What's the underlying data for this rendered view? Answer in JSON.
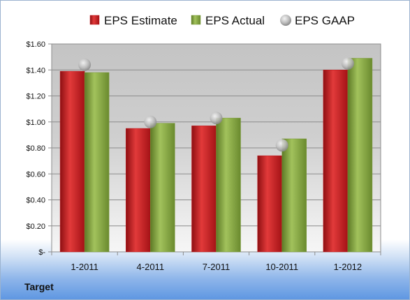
{
  "company": "Target",
  "chart_data": {
    "type": "bar",
    "categories": [
      "1-2011",
      "4-2011",
      "7-2011",
      "10-2011",
      "1-2012"
    ],
    "series": [
      {
        "name": "EPS Estimate",
        "values": [
          1.39,
          0.95,
          0.97,
          0.74,
          1.4
        ],
        "color": "#c0161b"
      },
      {
        "name": "EPS Actual",
        "values": [
          1.38,
          0.99,
          1.03,
          0.87,
          1.49
        ],
        "color": "#7a9a3a"
      },
      {
        "name": "EPS GAAP",
        "type": "scatter",
        "values": [
          1.44,
          1.0,
          1.03,
          0.82,
          1.45
        ],
        "color": "#b8b8b8"
      }
    ],
    "ylim": [
      0,
      1.6
    ],
    "ytick_labels": [
      "$-",
      "$0.20",
      "$0.40",
      "$0.60",
      "$0.80",
      "$1.00",
      "$1.20",
      "$1.40",
      "$1.60"
    ],
    "grid": true,
    "legend_position": "top"
  }
}
